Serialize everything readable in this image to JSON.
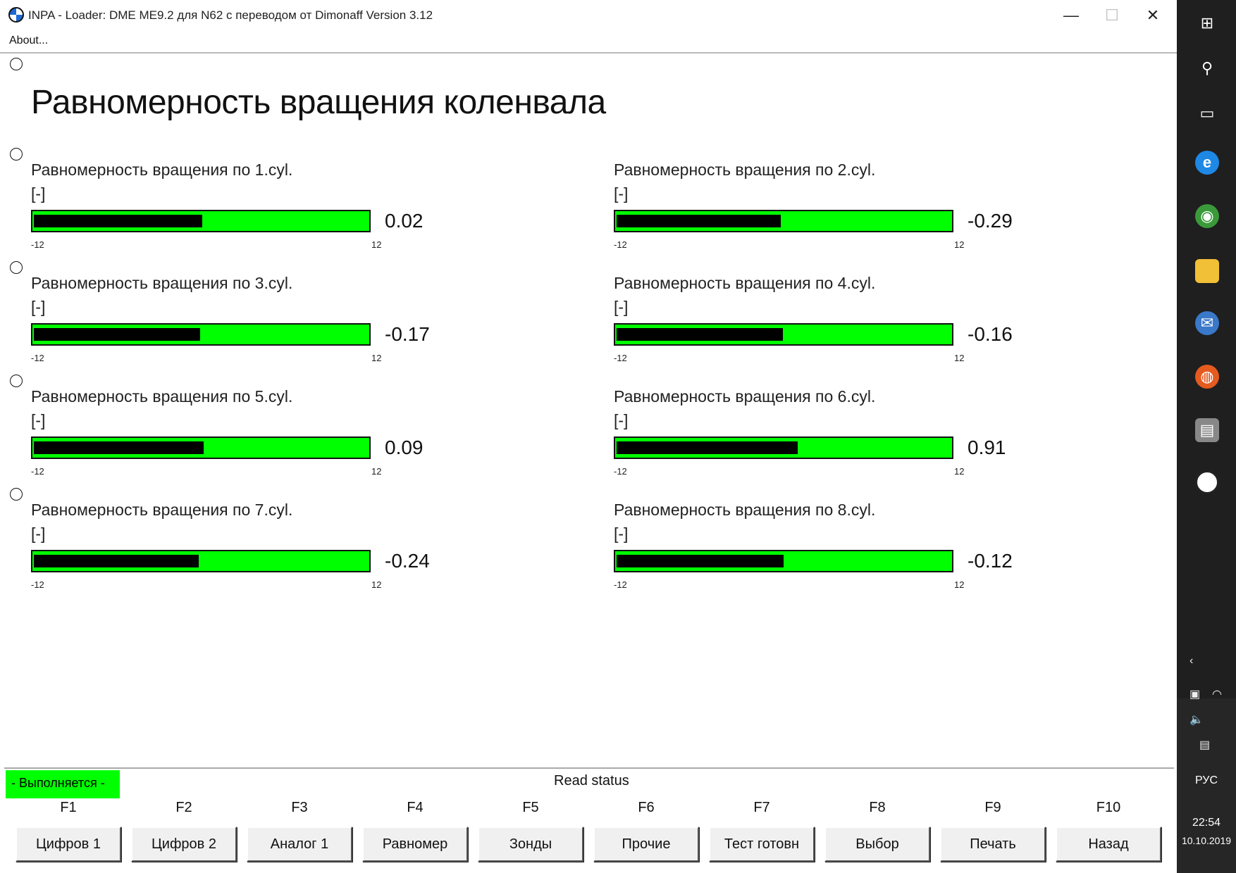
{
  "window": {
    "title": "INPA - Loader: DME ME9.2 для N62 с переводом от Dimonaff Version 3.12",
    "minimize": "—",
    "maximize": "☐",
    "close": "✕"
  },
  "menu": {
    "about": "About..."
  },
  "page": {
    "title": "Равномерность вращения коленвала"
  },
  "gauges": [
    {
      "label": "Равномерность вращения по 1.cyl.",
      "unit": "[-]",
      "value": "0.02",
      "min": "-12",
      "max": "12",
      "level": 0.02
    },
    {
      "label": "Равномерность вращения по 2.cyl.",
      "unit": "[-]",
      "value": "-0.29",
      "min": "-12",
      "max": "12",
      "level": -0.29
    },
    {
      "label": "Равномерность вращения по 3.cyl.",
      "unit": "[-]",
      "value": "-0.17",
      "min": "-12",
      "max": "12",
      "level": -0.17
    },
    {
      "label": "Равномерность вращения по 4.cyl.",
      "unit": "[-]",
      "value": "-0.16",
      "min": "-12",
      "max": "12",
      "level": -0.16
    },
    {
      "label": "Равномерность вращения по 5.cyl.",
      "unit": "[-]",
      "value": "0.09",
      "min": "-12",
      "max": "12",
      "level": 0.09
    },
    {
      "label": "Равномерность вращения по 6.cyl.",
      "unit": "[-]",
      "value": "0.91",
      "min": "-12",
      "max": "12",
      "level": 0.91
    },
    {
      "label": "Равномерность вращения по 7.cyl.",
      "unit": "[-]",
      "value": "-0.24",
      "min": "-12",
      "max": "12",
      "level": -0.24
    },
    {
      "label": "Равномерность вращения по 8.cyl.",
      "unit": "[-]",
      "value": "-0.12",
      "min": "-12",
      "max": "12",
      "level": -0.12
    }
  ],
  "status": {
    "running": "- Выполняется -",
    "text": "Read status"
  },
  "fkeys": [
    {
      "key": "F1",
      "label": "Цифров 1"
    },
    {
      "key": "F2",
      "label": "Цифров 2"
    },
    {
      "key": "F3",
      "label": "Аналог 1"
    },
    {
      "key": "F4",
      "label": "Равномер"
    },
    {
      "key": "F5",
      "label": "Зонды"
    },
    {
      "key": "F6",
      "label": "Прочие"
    },
    {
      "key": "F7",
      "label": "Тест готовн"
    },
    {
      "key": "F8",
      "label": "Выбор"
    },
    {
      "key": "F9",
      "label": "Печать"
    },
    {
      "key": "F10",
      "label": "Назад"
    }
  ],
  "taskbar": {
    "icons": [
      "windows-icon",
      "search-icon",
      "task-view-icon",
      "internet-explorer-icon",
      "chrome-icon",
      "file-explorer-icon",
      "thunderbird-icon",
      "firefox-icon",
      "inpa-app-icon",
      "bmw-inpa-icon"
    ],
    "language": "РУС",
    "time": "22:54",
    "date": "10.10.2019"
  }
}
